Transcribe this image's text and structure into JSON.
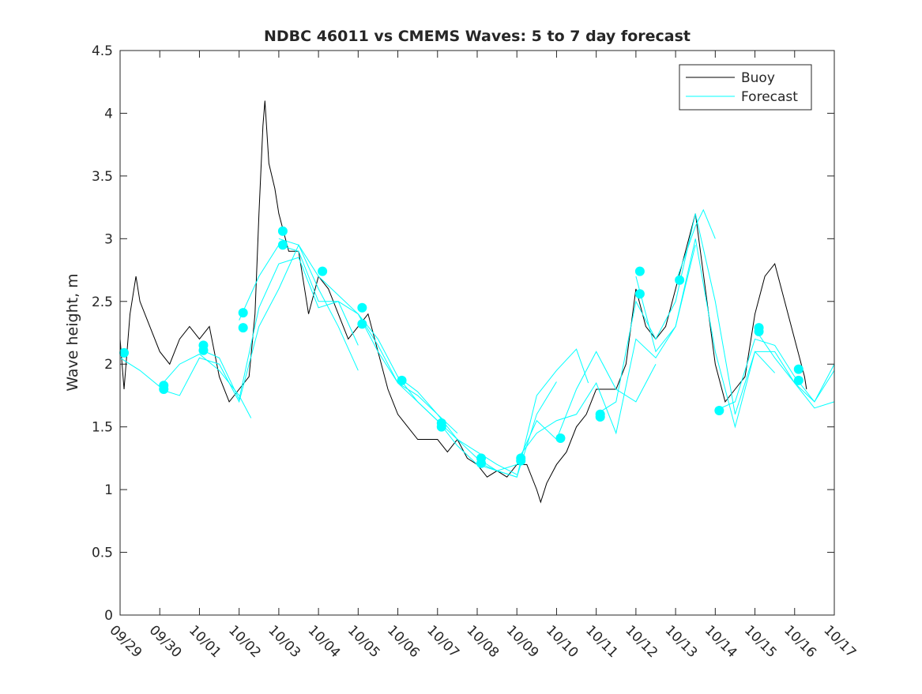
{
  "chart_data": {
    "type": "line",
    "title": "NDBC 46011 vs CMEMS Waves: 5 to 7 day forecast",
    "xlabel": "",
    "ylabel": "Wave height, m",
    "ylim": [
      0,
      4.5
    ],
    "xlim": [
      0,
      18
    ],
    "x_unit": "days since 09/29",
    "yticks": [
      "0",
      "0.5",
      "1",
      "1.5",
      "2",
      "2.5",
      "3",
      "3.5",
      "4",
      "4.5"
    ],
    "xticks": [
      "09/29",
      "09/30",
      "10/01",
      "10/02",
      "10/03",
      "10/04",
      "10/05",
      "10/06",
      "10/07",
      "10/08",
      "10/09",
      "10/10",
      "10/11",
      "10/12",
      "10/13",
      "10/14",
      "10/15",
      "10/16",
      "10/17"
    ],
    "grid": false,
    "legend_position": "top-right",
    "legend": [
      {
        "label": "Buoy",
        "color": "#000000"
      },
      {
        "label": "Forecast",
        "color": "#00ffff"
      }
    ],
    "buoy": [
      [
        0,
        2.2
      ],
      [
        0.1,
        1.8
      ],
      [
        0.25,
        2.4
      ],
      [
        0.4,
        2.7
      ],
      [
        0.5,
        2.5
      ],
      [
        0.75,
        2.3
      ],
      [
        1.0,
        2.1
      ],
      [
        1.25,
        2.0
      ],
      [
        1.5,
        2.2
      ],
      [
        1.75,
        2.3
      ],
      [
        2.0,
        2.2
      ],
      [
        2.25,
        2.3
      ],
      [
        2.5,
        1.9
      ],
      [
        2.75,
        1.7
      ],
      [
        3.0,
        1.8
      ],
      [
        3.25,
        1.9
      ],
      [
        3.4,
        2.4
      ],
      [
        3.5,
        3.2
      ],
      [
        3.6,
        3.9
      ],
      [
        3.65,
        4.1
      ],
      [
        3.75,
        3.6
      ],
      [
        3.9,
        3.4
      ],
      [
        4.0,
        3.2
      ],
      [
        4.25,
        2.9
      ],
      [
        4.5,
        2.9
      ],
      [
        4.75,
        2.4
      ],
      [
        5.0,
        2.7
      ],
      [
        5.25,
        2.6
      ],
      [
        5.5,
        2.4
      ],
      [
        5.75,
        2.2
      ],
      [
        6.0,
        2.3
      ],
      [
        6.25,
        2.4
      ],
      [
        6.5,
        2.1
      ],
      [
        6.75,
        1.8
      ],
      [
        7.0,
        1.6
      ],
      [
        7.25,
        1.5
      ],
      [
        7.5,
        1.4
      ],
      [
        7.75,
        1.4
      ],
      [
        8.0,
        1.4
      ],
      [
        8.25,
        1.3
      ],
      [
        8.5,
        1.4
      ],
      [
        8.75,
        1.25
      ],
      [
        9.0,
        1.2
      ],
      [
        9.25,
        1.1
      ],
      [
        9.5,
        1.15
      ],
      [
        9.75,
        1.1
      ],
      [
        10.0,
        1.2
      ],
      [
        10.25,
        1.2
      ],
      [
        10.5,
        1.0
      ],
      [
        10.6,
        0.9
      ],
      [
        10.75,
        1.05
      ],
      [
        11.0,
        1.2
      ],
      [
        11.25,
        1.3
      ],
      [
        11.5,
        1.5
      ],
      [
        11.75,
        1.6
      ],
      [
        12.0,
        1.8
      ],
      [
        12.25,
        1.8
      ],
      [
        12.5,
        1.8
      ],
      [
        12.75,
        2.0
      ],
      [
        13.0,
        2.6
      ],
      [
        13.25,
        2.3
      ],
      [
        13.5,
        2.2
      ],
      [
        13.75,
        2.3
      ],
      [
        14.0,
        2.6
      ],
      [
        14.25,
        2.9
      ],
      [
        14.5,
        3.2
      ],
      [
        14.75,
        2.6
      ],
      [
        15.0,
        2.0
      ],
      [
        15.25,
        1.7
      ],
      [
        15.5,
        1.8
      ],
      [
        15.75,
        1.9
      ],
      [
        16.0,
        2.4
      ],
      [
        16.25,
        2.7
      ],
      [
        16.5,
        2.8
      ],
      [
        16.75,
        2.5
      ],
      [
        17.0,
        2.2
      ],
      [
        17.25,
        1.9
      ],
      [
        17.3,
        1.8
      ]
    ],
    "forecast_series": [
      [
        [
          0,
          2.05
        ],
        [
          0.5,
          1.95
        ],
        [
          1,
          1.82
        ],
        [
          1.5,
          2.0
        ],
        [
          2,
          2.08
        ],
        [
          2.5,
          1.95
        ],
        [
          3,
          1.75
        ],
        [
          3.3,
          1.57
        ]
      ],
      [
        [
          1,
          1.8
        ],
        [
          1.5,
          1.75
        ],
        [
          2,
          2.05
        ],
        [
          2.5,
          2.0
        ],
        [
          3,
          1.7
        ],
        [
          3.5,
          2.3
        ],
        [
          4,
          2.6
        ],
        [
          4.5,
          2.95
        ],
        [
          5,
          2.6
        ],
        [
          5.5,
          2.3
        ],
        [
          6,
          1.95
        ]
      ],
      [
        [
          2,
          2.12
        ],
        [
          2.5,
          2.05
        ],
        [
          3,
          1.72
        ],
        [
          3.5,
          2.45
        ],
        [
          4,
          2.8
        ],
        [
          4.5,
          2.85
        ],
        [
          5,
          2.45
        ],
        [
          5.5,
          2.5
        ],
        [
          6,
          2.15
        ]
      ],
      [
        [
          3,
          2.35
        ],
        [
          3.5,
          2.7
        ],
        [
          4,
          2.95
        ],
        [
          4.5,
          2.9
        ],
        [
          5,
          2.5
        ],
        [
          5.5,
          2.5
        ],
        [
          6,
          2.4
        ],
        [
          6.5,
          2.1
        ],
        [
          7,
          1.85
        ],
        [
          7.5,
          1.75
        ],
        [
          8,
          1.6
        ],
        [
          8.5,
          1.45
        ]
      ],
      [
        [
          4,
          3.0
        ],
        [
          4.5,
          2.95
        ],
        [
          5,
          2.7
        ],
        [
          5.5,
          2.55
        ],
        [
          6,
          2.4
        ],
        [
          6.5,
          2.2
        ],
        [
          7,
          1.9
        ],
        [
          7.5,
          1.78
        ],
        [
          8,
          1.6
        ],
        [
          8.5,
          1.4
        ],
        [
          9,
          1.3
        ],
        [
          9.5,
          1.2
        ],
        [
          10,
          1.12
        ]
      ],
      [
        [
          6,
          2.4
        ],
        [
          6.5,
          2.15
        ],
        [
          7,
          1.85
        ],
        [
          7.5,
          1.7
        ],
        [
          8,
          1.55
        ],
        [
          8.5,
          1.4
        ],
        [
          9,
          1.25
        ],
        [
          9.5,
          1.15
        ],
        [
          10,
          1.1
        ],
        [
          10.5,
          1.6
        ],
        [
          11,
          1.86
        ]
      ],
      [
        [
          7,
          1.9
        ],
        [
          7.5,
          1.7
        ],
        [
          8,
          1.55
        ],
        [
          8.5,
          1.35
        ],
        [
          9,
          1.2
        ],
        [
          9.5,
          1.15
        ],
        [
          10,
          1.1
        ],
        [
          10.5,
          1.75
        ],
        [
          11,
          1.95
        ],
        [
          11.5,
          2.12
        ],
        [
          11.8,
          1.85
        ]
      ],
      [
        [
          9,
          1.22
        ],
        [
          9.5,
          1.15
        ],
        [
          10,
          1.2
        ],
        [
          10.5,
          1.55
        ],
        [
          11,
          1.4
        ],
        [
          11.5,
          1.8
        ],
        [
          12,
          2.1
        ],
        [
          12.5,
          1.8
        ],
        [
          13,
          1.7
        ],
        [
          13.5,
          2.0
        ]
      ],
      [
        [
          10,
          1.24
        ],
        [
          10.5,
          1.45
        ],
        [
          11,
          1.55
        ],
        [
          11.5,
          1.6
        ],
        [
          12,
          1.85
        ],
        [
          12.5,
          1.45
        ],
        [
          13,
          2.2
        ],
        [
          13.5,
          2.05
        ],
        [
          14,
          2.3
        ],
        [
          14.5,
          2.95
        ]
      ],
      [
        [
          12,
          1.6
        ],
        [
          12.5,
          1.7
        ],
        [
          13,
          2.5
        ],
        [
          13.5,
          2.2
        ],
        [
          14,
          2.5
        ],
        [
          14.5,
          3.2
        ],
        [
          15,
          2.5
        ],
        [
          15.5,
          1.6
        ],
        [
          16,
          2.1
        ],
        [
          16.5,
          1.93
        ]
      ],
      [
        [
          13,
          2.7
        ],
        [
          13.5,
          2.1
        ],
        [
          14,
          2.3
        ],
        [
          14.5,
          3.0
        ],
        [
          15,
          2.1
        ],
        [
          15.5,
          1.5
        ],
        [
          16,
          2.1
        ],
        [
          16.5,
          2.1
        ],
        [
          17,
          1.85
        ],
        [
          17.5,
          1.65
        ],
        [
          18,
          1.7
        ]
      ],
      [
        [
          14,
          2.65
        ],
        [
          14.5,
          3.1
        ],
        [
          14.7,
          3.23
        ],
        [
          15,
          3.0
        ]
      ],
      [
        [
          15,
          1.63
        ],
        [
          15.5,
          1.7
        ],
        [
          16,
          2.2
        ],
        [
          16.5,
          2.15
        ],
        [
          17,
          1.9
        ],
        [
          17.5,
          1.7
        ],
        [
          18,
          2.0
        ]
      ],
      [
        [
          16,
          2.28
        ],
        [
          16.5,
          2.05
        ],
        [
          17,
          1.85
        ],
        [
          17.5,
          1.7
        ],
        [
          18,
          1.95
        ]
      ]
    ],
    "forecast_points": [
      [
        0.1,
        2.09
      ],
      [
        1.1,
        1.8
      ],
      [
        1.1,
        1.83
      ],
      [
        2.1,
        2.15
      ],
      [
        2.1,
        2.11
      ],
      [
        3.1,
        2.41
      ],
      [
        3.1,
        2.29
      ],
      [
        4.1,
        3.06
      ],
      [
        4.1,
        2.95
      ],
      [
        5.1,
        2.74
      ],
      [
        6.1,
        2.45
      ],
      [
        6.1,
        2.32
      ],
      [
        7.1,
        1.87
      ],
      [
        8.1,
        1.53
      ],
      [
        8.1,
        1.5
      ],
      [
        9.1,
        1.25
      ],
      [
        9.1,
        1.21
      ],
      [
        10.1,
        1.25
      ],
      [
        10.1,
        1.23
      ],
      [
        11.1,
        1.41
      ],
      [
        12.1,
        1.6
      ],
      [
        12.1,
        1.58
      ],
      [
        13.1,
        2.74
      ],
      [
        13.1,
        2.56
      ],
      [
        14.1,
        2.67
      ],
      [
        15.1,
        1.63
      ],
      [
        16.1,
        2.29
      ],
      [
        16.1,
        2.26
      ],
      [
        17.1,
        1.96
      ],
      [
        17.1,
        1.87
      ]
    ]
  }
}
